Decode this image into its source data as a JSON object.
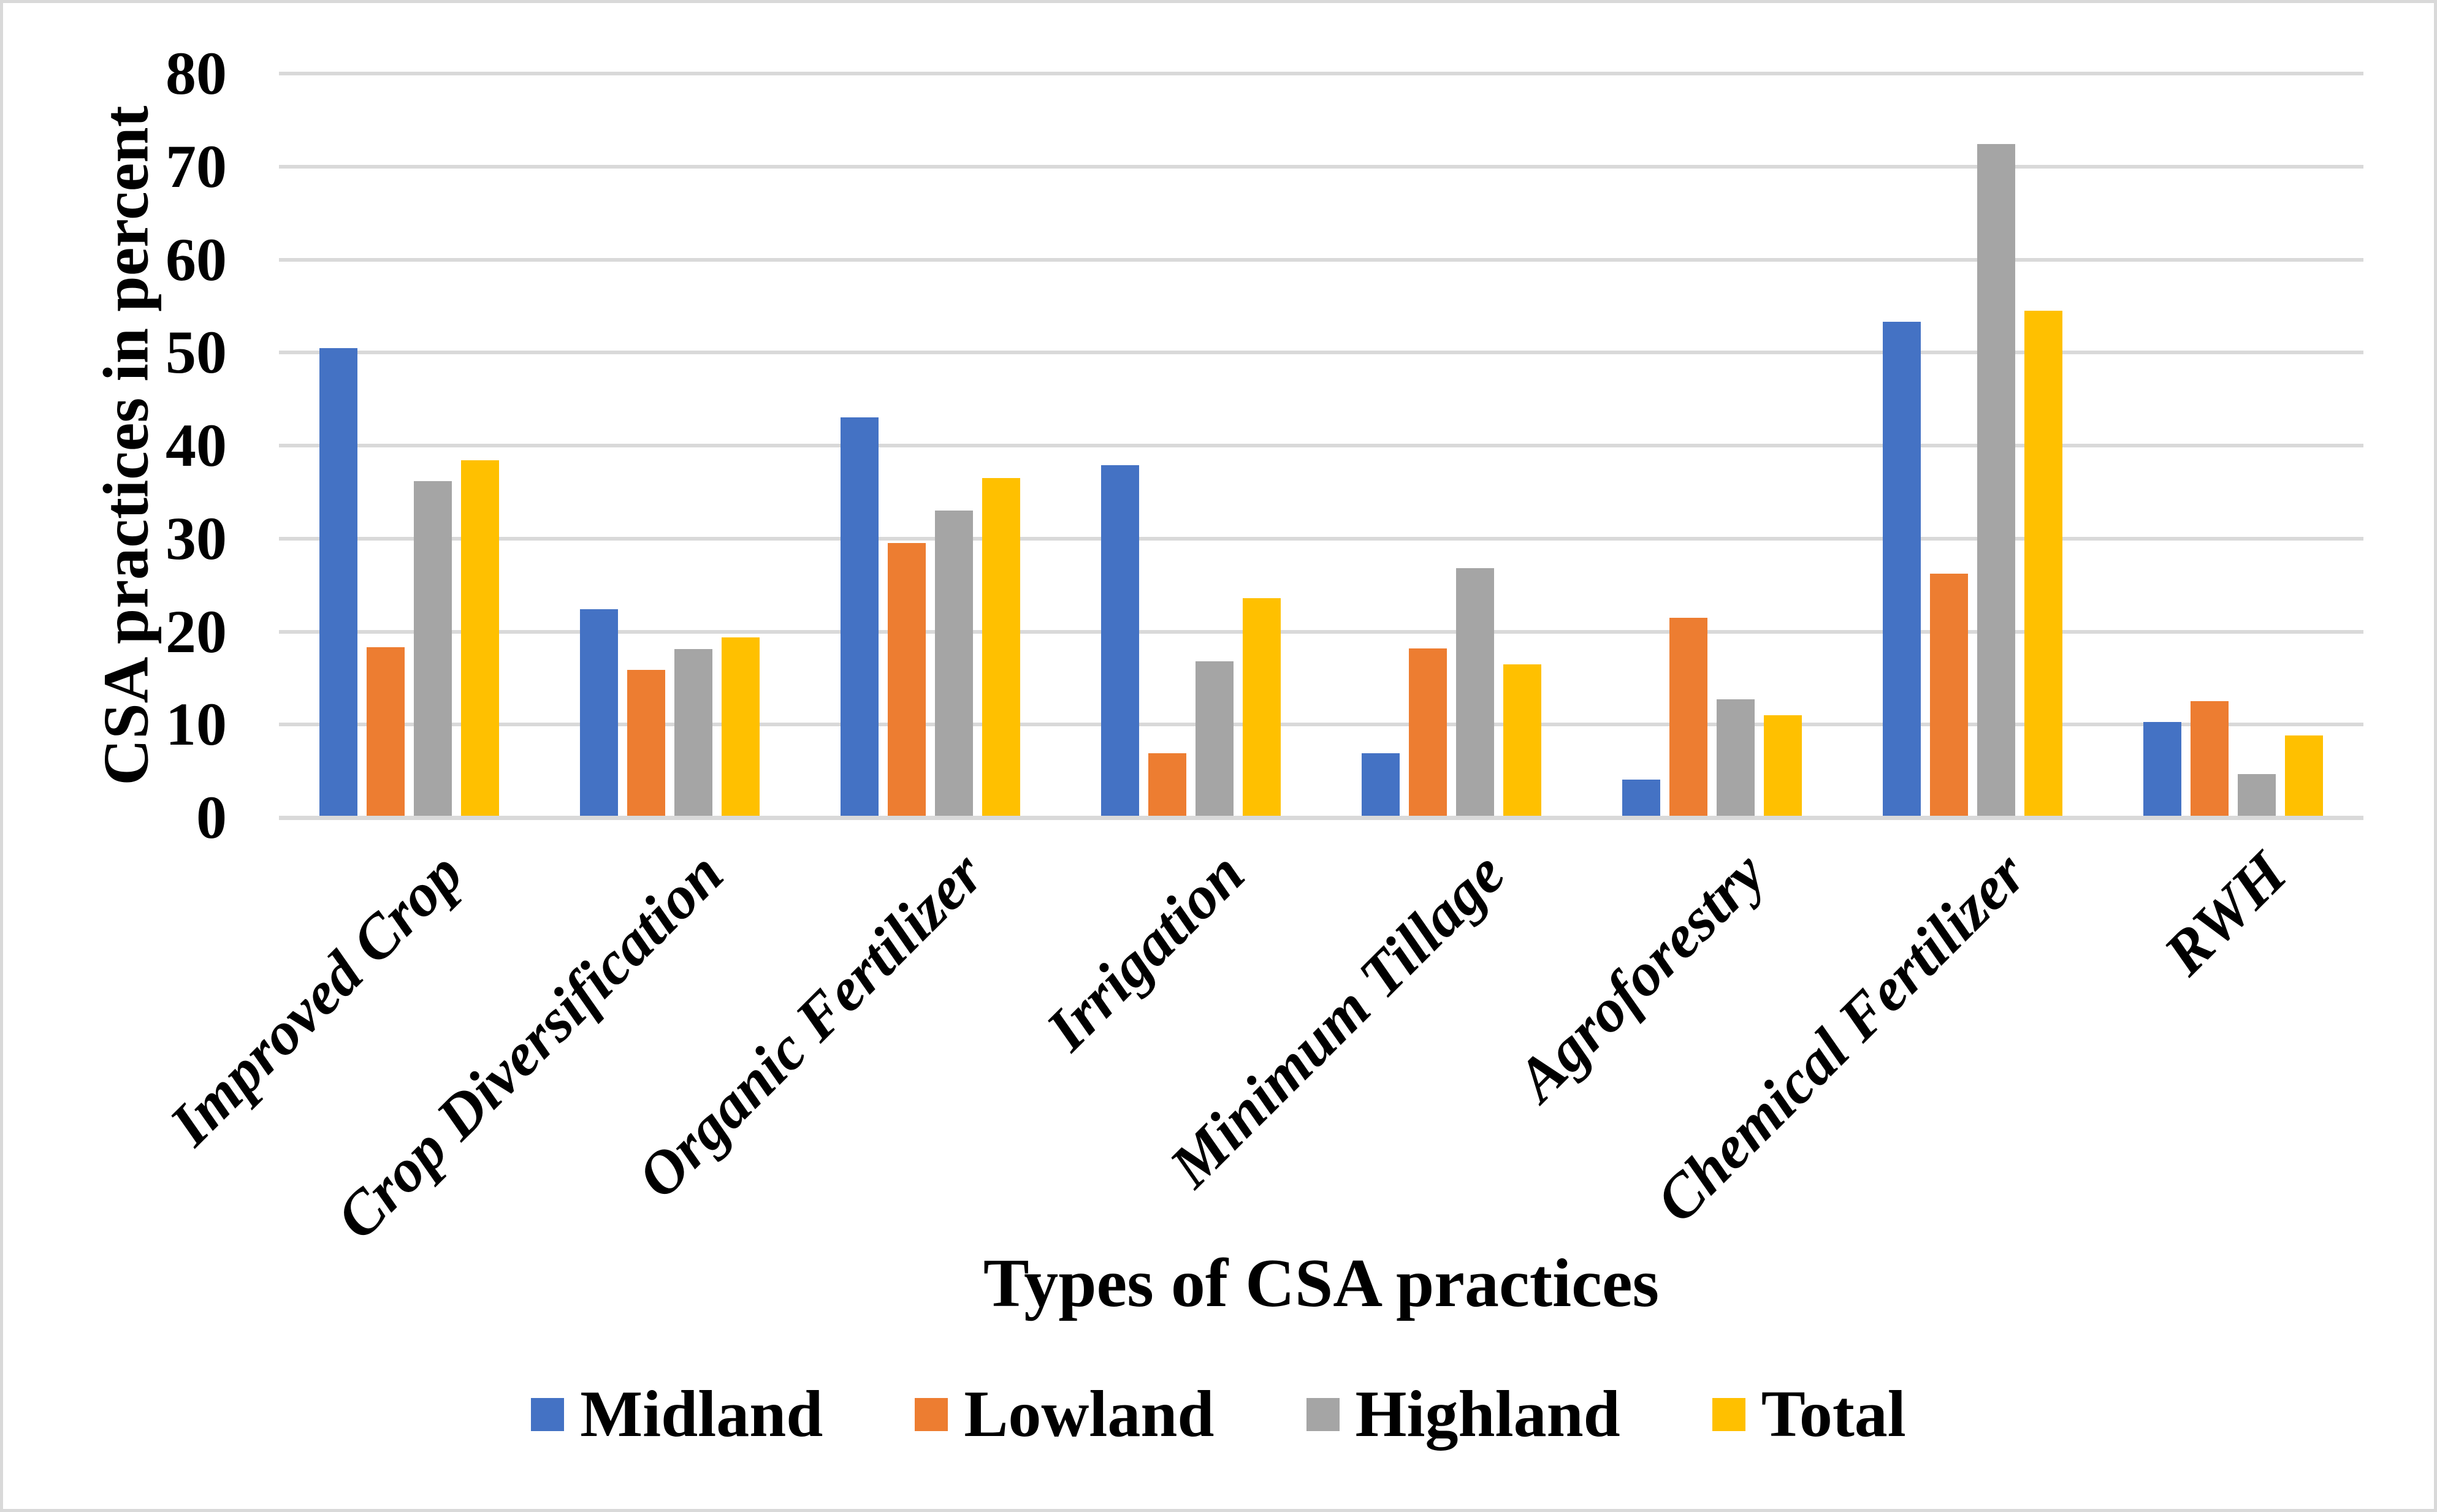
{
  "figure": {
    "background": "#FFFFFF",
    "border_color": "#D9D9D9"
  },
  "chart_data": {
    "type": "bar",
    "title": "",
    "xlabel": "Types of CSA practices",
    "ylabel": "CSA practices in percent",
    "ylim": [
      0,
      80
    ],
    "yticks": [
      0,
      10,
      20,
      30,
      40,
      50,
      60,
      70,
      80
    ],
    "grid": true,
    "gridline_color": "#D9D9D9",
    "legend_position": "bottom",
    "categories": [
      "Improved Crop",
      "Crop Diversification",
      "Organic Fertilizer",
      "Irrigation",
      "Minimum Tillage",
      "Agroforestry",
      "Chemical Fertilizer",
      "RWH"
    ],
    "series": [
      {
        "name": "Midland",
        "color": "#4472C4",
        "values": [
          50.5,
          22.4,
          43.0,
          37.9,
          6.9,
          4.1,
          53.3,
          10.3
        ]
      },
      {
        "name": "Lowland",
        "color": "#ED7D31",
        "values": [
          18.3,
          15.9,
          29.5,
          6.9,
          18.2,
          21.5,
          26.2,
          12.5
        ]
      },
      {
        "name": "Highland",
        "color": "#A5A5A5",
        "values": [
          36.2,
          18.1,
          33.0,
          16.8,
          26.8,
          12.7,
          72.4,
          4.7
        ]
      },
      {
        "name": "Total",
        "color": "#FFC000",
        "values": [
          38.4,
          19.4,
          36.5,
          23.6,
          16.5,
          11.0,
          54.5,
          8.8
        ]
      }
    ]
  }
}
